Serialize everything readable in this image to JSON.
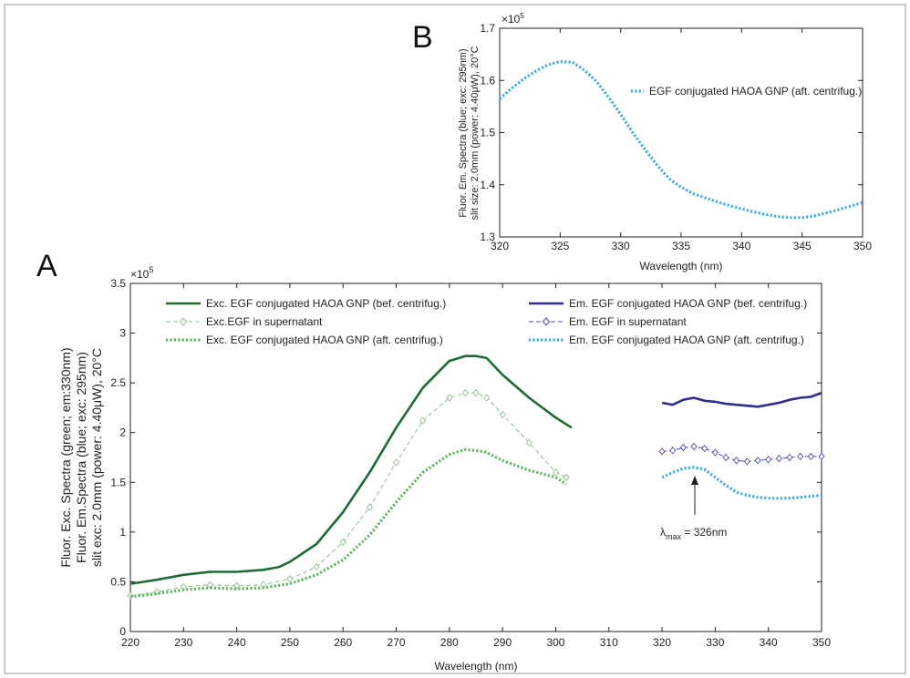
{
  "panel_a": {
    "letter": "A"
  },
  "panel_b": {
    "letter": "B"
  },
  "chart_data": [
    {
      "panel": "A",
      "type": "line",
      "xlabel": "Wavelength (nm)",
      "ylabel_lines": [
        "Fluor. Exc. Spectra (green; em:330nm)",
        "Fluor. Em.Spectra (blue; exc: 295nm)",
        "slit exc: 2.0mm (power: 4.40μW), 20°C"
      ],
      "xlim": [
        220,
        350
      ],
      "ylim": [
        0,
        350000
      ],
      "y_multiplier": "×10",
      "y_multiplier_exp": "5",
      "x_ticks": [
        220,
        230,
        240,
        250,
        260,
        270,
        280,
        290,
        300,
        310,
        320,
        330,
        340,
        350
      ],
      "y_ticks": [
        0,
        50000,
        100000,
        150000,
        200000,
        250000,
        300000,
        350000
      ],
      "y_tick_labels": [
        "0",
        "0.5",
        "1",
        "1.5",
        "2",
        "2.5",
        "3",
        "3.5"
      ],
      "annotation": {
        "prefix": "λ",
        "subscript": "max",
        "text": " = 326nm",
        "x": 326,
        "y": 150000
      },
      "series": [
        {
          "name": "Exc. EGF conjugated HAOA GNP (bef. centrifug.)",
          "color": "#1e6b35",
          "style": "solid",
          "x": [
            220,
            225,
            230,
            235,
            240,
            245,
            248,
            250,
            255,
            260,
            265,
            270,
            275,
            280,
            283,
            285,
            287,
            290,
            295,
            300,
            303
          ],
          "y": [
            48000,
            52000,
            57000,
            60000,
            60000,
            62000,
            65000,
            70000,
            88000,
            120000,
            160000,
            205000,
            245000,
            272000,
            277000,
            277000,
            275000,
            258000,
            235000,
            215000,
            205000
          ]
        },
        {
          "name": "Exc.EGF in supernatant",
          "color": "#8cc08c",
          "style": "dashed-diamond",
          "x": [
            220,
            225,
            230,
            235,
            240,
            245,
            250,
            255,
            260,
            265,
            270,
            275,
            280,
            283,
            285,
            287,
            290,
            295,
            300,
            302
          ],
          "y": [
            36000,
            40000,
            45000,
            47000,
            46000,
            47000,
            53000,
            65000,
            90000,
            125000,
            170000,
            212000,
            235000,
            240000,
            240000,
            235000,
            218000,
            190000,
            160000,
            155000
          ]
        },
        {
          "name": "Exc. EGF conjugated HAOA GNP (aft. centrifug.)",
          "color": "#5cb85c",
          "style": "dotted",
          "x": [
            220,
            225,
            230,
            235,
            240,
            245,
            250,
            255,
            260,
            265,
            270,
            275,
            280,
            283,
            285,
            287,
            290,
            295,
            300,
            302
          ],
          "y": [
            35000,
            38000,
            42000,
            44000,
            43000,
            44000,
            48000,
            57000,
            72000,
            97000,
            130000,
            160000,
            178000,
            183000,
            182000,
            180000,
            172000,
            162000,
            155000,
            148000
          ]
        },
        {
          "name": "Em. EGF conjugated HAOA GNP (bef. centrifug.)",
          "color": "#2f2f8f",
          "style": "solid",
          "x": [
            320,
            322,
            324,
            326,
            328,
            330,
            332,
            334,
            336,
            338,
            340,
            342,
            344,
            346,
            348,
            350
          ],
          "y": [
            230000,
            228000,
            233000,
            235000,
            232000,
            231000,
            229000,
            228000,
            227000,
            226000,
            228000,
            230000,
            233000,
            235000,
            236000,
            240000
          ]
        },
        {
          "name": "Em. EGF in supernatant",
          "color": "#4b4bb8",
          "style": "dashed-diamond",
          "x": [
            320,
            322,
            324,
            326,
            328,
            330,
            332,
            334,
            336,
            338,
            340,
            342,
            344,
            346,
            348,
            350
          ],
          "y": [
            181000,
            182000,
            185000,
            186000,
            184000,
            180000,
            175000,
            172000,
            171000,
            172000,
            173000,
            174000,
            175000,
            176000,
            176000,
            176000
          ]
        },
        {
          "name": "Em. EGF conjugated HAOA GNP (aft. centrifug.)",
          "color": "#3aaee0",
          "style": "dotted",
          "x": [
            320,
            322,
            324,
            326,
            328,
            330,
            332,
            334,
            336,
            338,
            340,
            342,
            344,
            346,
            348,
            350
          ],
          "y": [
            155000,
            160000,
            164000,
            165000,
            163000,
            155000,
            147000,
            140000,
            137000,
            135000,
            134000,
            134000,
            134000,
            135000,
            136000,
            137000
          ]
        }
      ]
    },
    {
      "panel": "B",
      "type": "line",
      "xlabel": "Wavelength (nm)",
      "ylabel_lines": [
        "Fluor. Em. Spectra (blue; exc: 295nm)",
        "slit size: 2.0mm (power: 4.40μW), 20°C"
      ],
      "xlim": [
        320,
        350
      ],
      "ylim": [
        130000,
        170000
      ],
      "y_multiplier": "×10",
      "y_multiplier_exp": "5",
      "x_ticks": [
        320,
        325,
        330,
        335,
        340,
        345,
        350
      ],
      "y_ticks": [
        130000,
        140000,
        150000,
        160000,
        170000
      ],
      "y_tick_labels": [
        "1.3",
        "1.4",
        "1.5",
        "1.6",
        "1.7"
      ],
      "series": [
        {
          "name": "EGF conjugated HAOA GNP (aft. centrifug.)",
          "color": "#3aaee0",
          "style": "dotted",
          "x": [
            320,
            321,
            322,
            323,
            324,
            325,
            326,
            327,
            328,
            329,
            330,
            331,
            332,
            333,
            334,
            335,
            336,
            337,
            338,
            339,
            340,
            341,
            342,
            343,
            344,
            345,
            346,
            347,
            348,
            349,
            350
          ],
          "y": [
            156500,
            158500,
            160300,
            161800,
            163000,
            163600,
            163500,
            162000,
            159800,
            156800,
            153500,
            150000,
            146800,
            143800,
            141200,
            139500,
            138300,
            137500,
            136700,
            136000,
            135400,
            134800,
            134300,
            133900,
            133700,
            133700,
            134000,
            134600,
            135200,
            135900,
            136600
          ]
        }
      ]
    }
  ]
}
